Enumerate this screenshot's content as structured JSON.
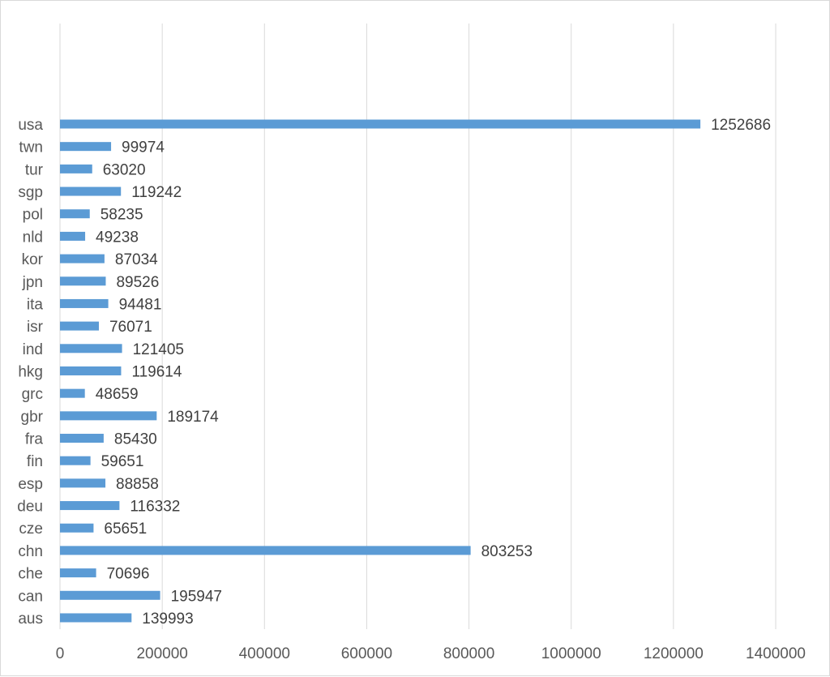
{
  "chart_data": {
    "type": "bar",
    "orientation": "horizontal",
    "categories": [
      "usa",
      "twn",
      "tur",
      "sgp",
      "pol",
      "nld",
      "kor",
      "jpn",
      "ita",
      "isr",
      "ind",
      "hkg",
      "grc",
      "gbr",
      "fra",
      "fin",
      "esp",
      "deu",
      "cze",
      "chn",
      "che",
      "can",
      "aus"
    ],
    "values": [
      1252686,
      99974,
      63020,
      119242,
      58235,
      49238,
      87034,
      89526,
      94481,
      76071,
      121405,
      119614,
      48659,
      189174,
      85430,
      59651,
      88858,
      116332,
      65651,
      803253,
      70696,
      195947,
      139993
    ],
    "value_labels": [
      "1252686",
      "99974",
      "63020",
      "119242",
      "58235",
      "49238",
      "87034",
      "89526",
      "94481",
      "76071",
      "121405",
      "119614",
      "48659",
      "189174",
      "85430",
      "59651",
      "88858",
      "116332",
      "65651",
      "803253",
      "70696",
      "195947",
      "139993"
    ],
    "xlim": [
      0,
      1400000
    ],
    "x_ticks": [
      0,
      200000,
      400000,
      600000,
      800000,
      1000000,
      1200000,
      1400000
    ],
    "x_tick_labels": [
      "0",
      "200000",
      "400000",
      "600000",
      "800000",
      "1000000",
      "1200000",
      "1400000"
    ],
    "title": "",
    "xlabel": "",
    "ylabel": "",
    "grid": "vertical",
    "legend": "none",
    "bar_color": "#5b9bd5",
    "grid_color": "#d9d9d9"
  }
}
